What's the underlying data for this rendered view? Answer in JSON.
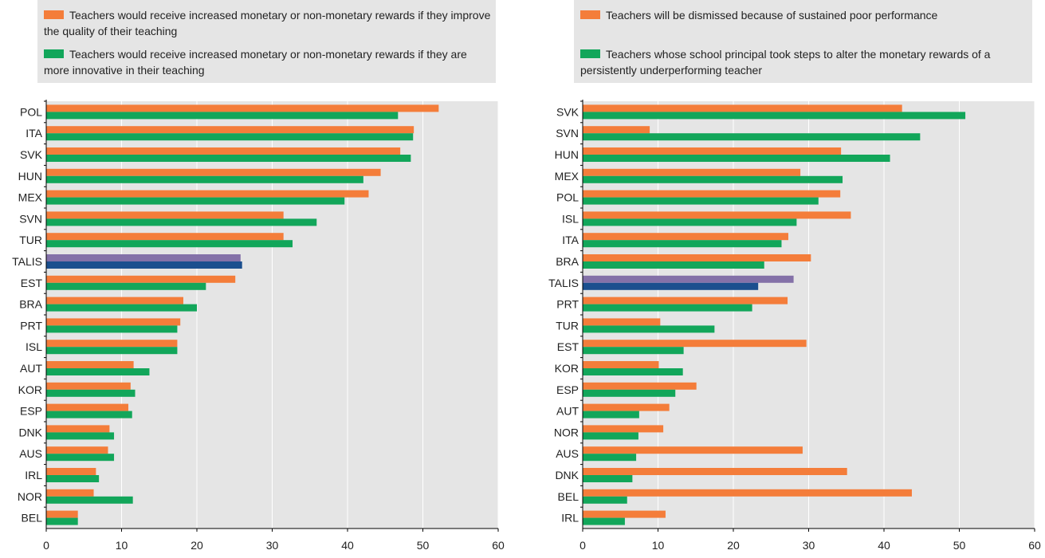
{
  "colors": {
    "series1": "#f47d3a",
    "series2": "#12a65a",
    "talis1": "#8471a8",
    "talis2": "#1b4f8e",
    "plot_bg": "#e5e5e5",
    "grid": "#ffffff"
  },
  "chart_data": [
    {
      "type": "bar",
      "orientation": "horizontal",
      "xlim": [
        0,
        60
      ],
      "xticks": [
        0,
        10,
        20,
        30,
        40,
        50,
        60
      ],
      "grid": true,
      "highlight_category": "TALIS",
      "categories": [
        "POL",
        "ITA",
        "SVK",
        "HUN",
        "MEX",
        "SVN",
        "TUR",
        "TALIS",
        "EST",
        "BRA",
        "PRT",
        "ISL",
        "AUT",
        "KOR",
        "ESP",
        "DNK",
        "AUS",
        "IRL",
        "NOR",
        "BEL"
      ],
      "series": [
        {
          "name": "Teachers would receive increased monetary or non-monetary rewards if they improve the quality of their teaching",
          "values": [
            52.1,
            48.8,
            47.0,
            44.4,
            42.8,
            31.5,
            31.5,
            25.8,
            25.1,
            18.2,
            17.8,
            17.4,
            11.6,
            11.2,
            10.9,
            8.4,
            8.2,
            6.6,
            6.3,
            4.2
          ]
        },
        {
          "name": "Teachers would receive increased monetary or non-monetary rewards if they are more innovative in their teaching",
          "values": [
            46.7,
            48.7,
            48.4,
            42.1,
            39.6,
            35.9,
            32.7,
            26.0,
            21.2,
            20.0,
            17.4,
            17.4,
            13.7,
            11.8,
            11.4,
            9.0,
            9.0,
            7.0,
            11.5,
            4.2
          ]
        }
      ]
    },
    {
      "type": "bar",
      "orientation": "horizontal",
      "xlim": [
        0,
        60
      ],
      "xticks": [
        0,
        10,
        20,
        30,
        40,
        50,
        60
      ],
      "grid": true,
      "highlight_category": "TALIS",
      "categories": [
        "SVK",
        "SVN",
        "HUN",
        "MEX",
        "POL",
        "ISL",
        "ITA",
        "BRA",
        "TALIS",
        "PRT",
        "TUR",
        "EST",
        "KOR",
        "ESP",
        "AUT",
        "NOR",
        "AUS",
        "DNK",
        "BEL",
        "IRL"
      ],
      "series": [
        {
          "name": "Teachers will be dismissed because of sustained poor performance",
          "values": [
            42.4,
            8.9,
            34.3,
            28.9,
            34.2,
            35.6,
            27.3,
            30.3,
            28.0,
            27.2,
            10.3,
            29.7,
            10.1,
            15.1,
            11.5,
            10.7,
            29.2,
            35.1,
            43.7,
            11.0
          ]
        },
        {
          "name": "Teachers whose school principal took steps to alter the monetary rewards of a persistently underperforming teacher",
          "values": [
            50.8,
            44.8,
            40.8,
            34.5,
            31.3,
            28.4,
            26.4,
            24.1,
            23.3,
            22.5,
            17.5,
            13.4,
            13.3,
            12.3,
            7.5,
            7.4,
            7.1,
            6.6,
            5.9,
            5.6
          ]
        }
      ]
    }
  ]
}
